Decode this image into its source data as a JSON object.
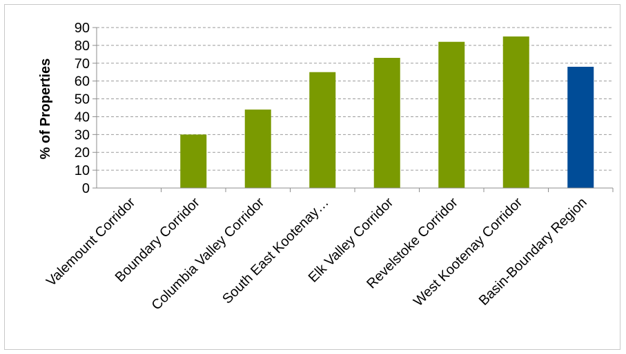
{
  "chart_data": {
    "type": "bar",
    "categories": [
      "Valemount Corridor",
      "Boundary Corridor",
      "Columbia Valley Corridor",
      "South East Kootenay…",
      "Elk Valley Corridor",
      "Revelstoke Corridor",
      "West Kootenay Corridor",
      "Basin-Boundary Region"
    ],
    "values": [
      0,
      30,
      44,
      65,
      73,
      82,
      85,
      68
    ],
    "bar_colors": [
      "#7a9a01",
      "#7a9a01",
      "#7a9a01",
      "#7a9a01",
      "#7a9a01",
      "#7a9a01",
      "#7a9a01",
      "#004c97"
    ],
    "ylabel": "% of Properties",
    "xlabel": "",
    "title": "",
    "ylim": [
      0,
      90
    ],
    "yticks": [
      0,
      10,
      20,
      30,
      40,
      50,
      60,
      70,
      80,
      90
    ],
    "grid": "horizontal dashed",
    "legend": "none"
  }
}
